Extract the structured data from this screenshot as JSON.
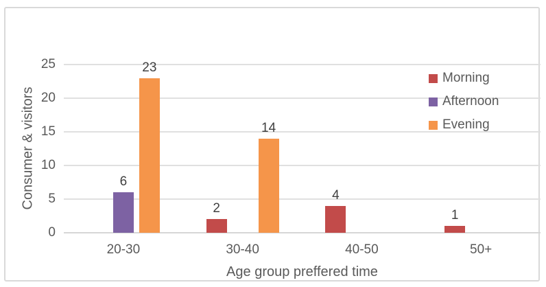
{
  "chart_data": {
    "type": "bar",
    "title": "",
    "xlabel": "Age group preffered time",
    "ylabel": "Consumer & visitors",
    "categories": [
      "20-30",
      "30-40",
      "40-50",
      "50+"
    ],
    "series": [
      {
        "name": "Morning",
        "color": "#C24B4A",
        "values": [
          0,
          2,
          4,
          1
        ]
      },
      {
        "name": "Afternoon",
        "color": "#7D62A3",
        "values": [
          6,
          0,
          0,
          0
        ]
      },
      {
        "name": "Evening",
        "color": "#F5954A",
        "values": [
          23,
          14,
          0,
          0
        ]
      }
    ],
    "ylim": [
      0,
      25
    ],
    "yticks": [
      0,
      5,
      10,
      15,
      20,
      25
    ],
    "grid": true,
    "data_labels": true,
    "legend_position": "inside-right",
    "colors": {
      "gridline": "#E0E0E0",
      "axis_line": "#D6D6D6",
      "tick_text": "#595959",
      "data_label_text": "#404040",
      "frame_border": "#D9D9D9",
      "background": "#FFFFFF"
    }
  }
}
